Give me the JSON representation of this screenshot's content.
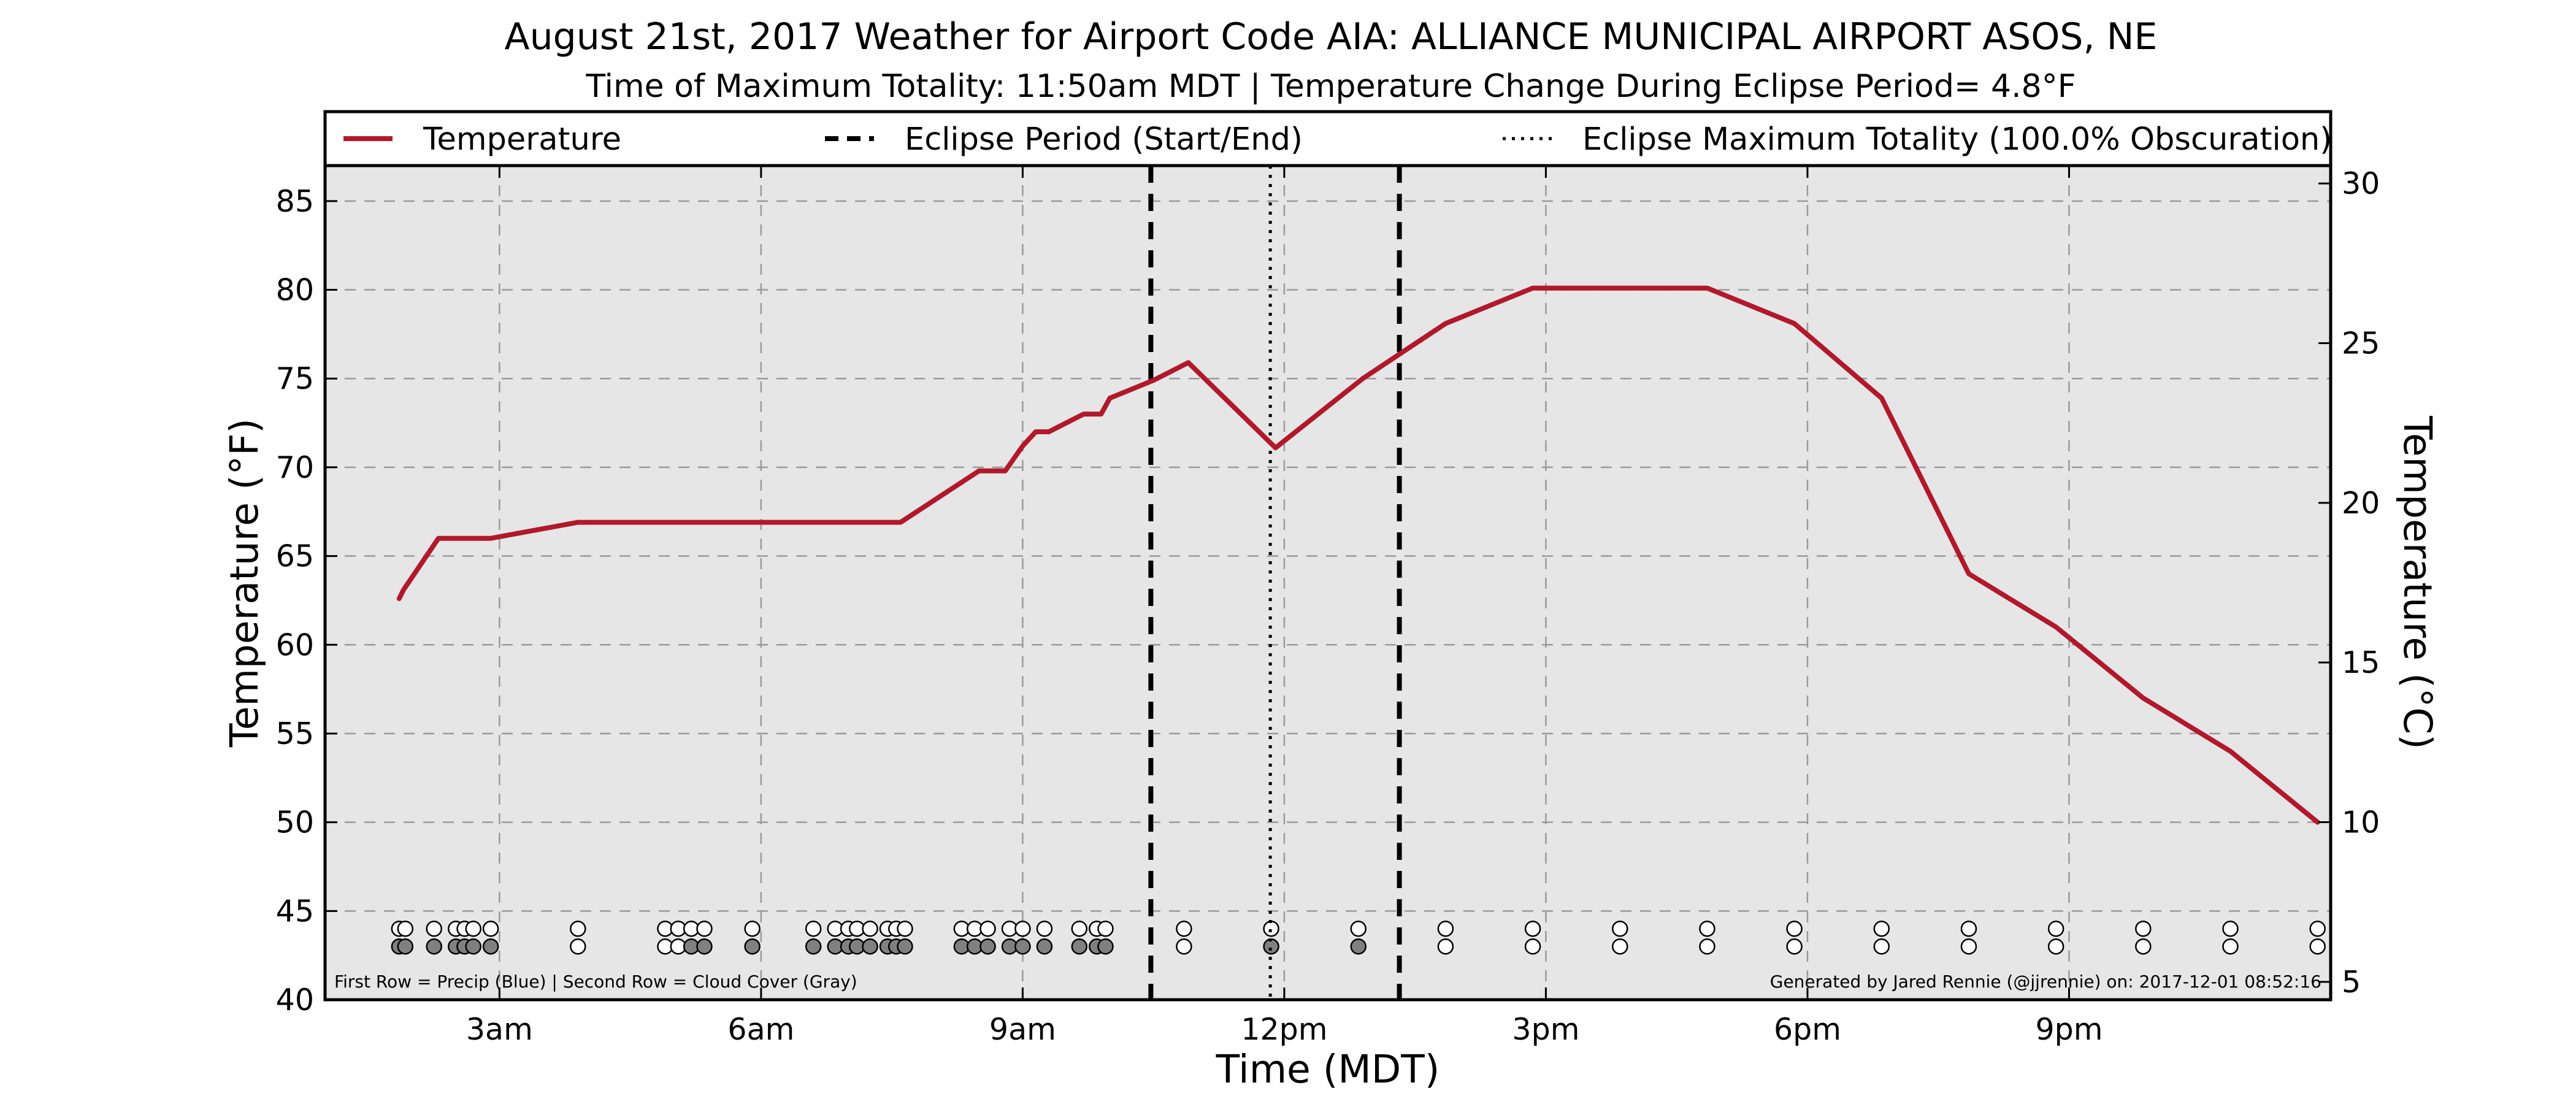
{
  "chart_data": {
    "type": "line",
    "title": "August 21st, 2017 Weather for Airport Code AIA: ALLIANCE MUNICIPAL AIRPORT ASOS, NE",
    "subtitle": "Time of Maximum Totality: 11:50am MDT | Temperature Change During Eclipse Period= 4.8$^\\circ$F",
    "subtitle_text": "Time of Maximum Totality: 11:50am MDT | Temperature Change During Eclipse Period= 4.8°F",
    "xlabel": "Time (MDT)",
    "ylabel": "Temperature (°F)",
    "ylabel_right": "Temperature (°C)",
    "xlim": [
      1.0,
      24.0
    ],
    "ylim": [
      40,
      87
    ],
    "ylim_right_c": [
      4.44,
      30.56
    ],
    "x_ticks": [
      {
        "x": 3,
        "label": "3am"
      },
      {
        "x": 6,
        "label": "6am"
      },
      {
        "x": 9,
        "label": "9am"
      },
      {
        "x": 12,
        "label": "12pm"
      },
      {
        "x": 15,
        "label": "3pm"
      },
      {
        "x": 18,
        "label": "6pm"
      },
      {
        "x": 21,
        "label": "9pm"
      }
    ],
    "y_ticks": [
      40,
      45,
      50,
      55,
      60,
      65,
      70,
      75,
      80,
      85
    ],
    "y_ticks_right": [
      5,
      10,
      15,
      20,
      25,
      30
    ],
    "grid": true,
    "legend_position": "top",
    "legend": [
      {
        "key": "temperature",
        "label": "Temperature",
        "style": "solid",
        "color": "#b2182b"
      },
      {
        "key": "eclipse_period",
        "label": "Eclipse Period (Start/End)",
        "style": "dashed",
        "color": "#000000"
      },
      {
        "key": "max_totality",
        "label": "Eclipse Maximum Totality (100.0% Obscuration)",
        "style": "dotted",
        "color": "#000000"
      }
    ],
    "series": [
      {
        "name": "Temperature",
        "color": "#b2182b",
        "points": [
          [
            1.85,
            62.6
          ],
          [
            1.9,
            63.1
          ],
          [
            2.3,
            66.0
          ],
          [
            2.9,
            66.0
          ],
          [
            3.9,
            66.9
          ],
          [
            7.6,
            66.9
          ],
          [
            8.5,
            69.8
          ],
          [
            8.8,
            69.8
          ],
          [
            9.0,
            71.2
          ],
          [
            9.15,
            72.0
          ],
          [
            9.3,
            72.0
          ],
          [
            9.7,
            73.0
          ],
          [
            9.9,
            73.0
          ],
          [
            10.0,
            73.9
          ],
          [
            10.5,
            74.9
          ],
          [
            10.9,
            75.9
          ],
          [
            11.9,
            71.1
          ],
          [
            12.9,
            75.0
          ],
          [
            13.85,
            78.1
          ],
          [
            14.85,
            80.1
          ],
          [
            16.85,
            80.1
          ],
          [
            17.85,
            78.1
          ],
          [
            18.85,
            73.9
          ],
          [
            19.85,
            64.0
          ],
          [
            20.85,
            61.0
          ],
          [
            21.85,
            57.0
          ],
          [
            22.85,
            54.0
          ],
          [
            23.85,
            50.0
          ]
        ]
      }
    ],
    "eclipse_start": 10.47,
    "eclipse_end": 13.32,
    "max_totality": 11.84,
    "obs_rows": {
      "row1_y": 44.0,
      "row2_y": 43.0,
      "precip_color": "#ffffff",
      "cloud_clear_color": "#ffffff",
      "cloud_cover_color": "#808080",
      "cloud_cover_values": [
        [
          1.85,
          1
        ],
        [
          1.92,
          1
        ],
        [
          2.25,
          1
        ],
        [
          2.5,
          1
        ],
        [
          2.6,
          1
        ],
        [
          2.7,
          1
        ],
        [
          2.9,
          1
        ],
        [
          3.9,
          0
        ],
        [
          4.9,
          0
        ],
        [
          5.05,
          0
        ],
        [
          5.2,
          1
        ],
        [
          5.35,
          1
        ],
        [
          5.9,
          1
        ],
        [
          6.6,
          1
        ],
        [
          6.85,
          1
        ],
        [
          7.0,
          1
        ],
        [
          7.1,
          1
        ],
        [
          7.25,
          1
        ],
        [
          7.45,
          1
        ],
        [
          7.55,
          1
        ],
        [
          7.65,
          1
        ],
        [
          8.3,
          1
        ],
        [
          8.45,
          1
        ],
        [
          8.6,
          1
        ],
        [
          8.85,
          1
        ],
        [
          9.0,
          1
        ],
        [
          9.25,
          1
        ],
        [
          9.65,
          1
        ],
        [
          9.85,
          1
        ],
        [
          9.95,
          1
        ],
        [
          10.85,
          0
        ],
        [
          11.85,
          1
        ],
        [
          12.85,
          1
        ],
        [
          13.85,
          0
        ],
        [
          14.85,
          0
        ],
        [
          15.85,
          0
        ],
        [
          16.85,
          0
        ],
        [
          17.85,
          0
        ],
        [
          18.85,
          0
        ],
        [
          19.85,
          0
        ],
        [
          20.85,
          0
        ],
        [
          21.85,
          0
        ],
        [
          22.85,
          0
        ],
        [
          23.85,
          0
        ]
      ]
    },
    "note_left": "First Row = Precip (Blue) | Second Row = Cloud Cover (Gray)",
    "note_right": "Generated by Jared Rennie (@jjrennie) on: 2017-12-01 08:52:16"
  }
}
